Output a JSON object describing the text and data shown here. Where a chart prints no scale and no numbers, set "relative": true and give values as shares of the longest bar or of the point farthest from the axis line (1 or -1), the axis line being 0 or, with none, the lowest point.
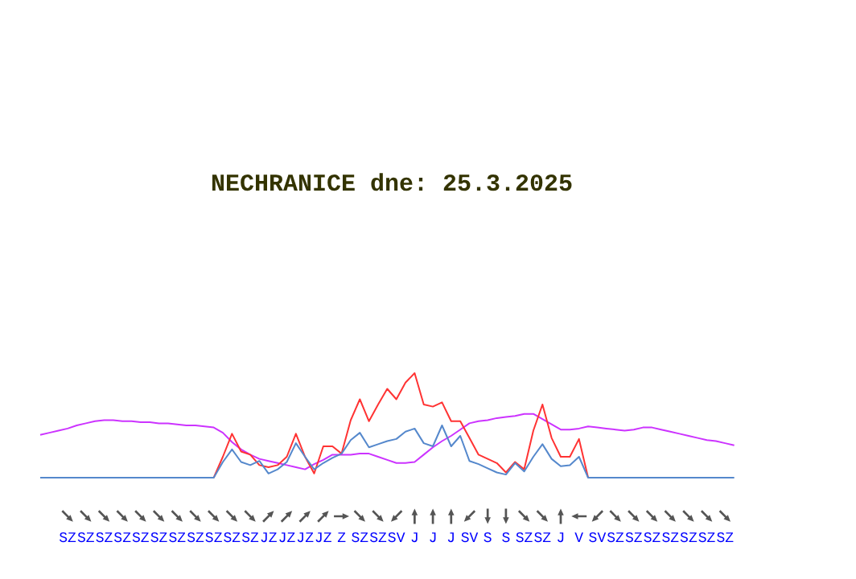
{
  "chart_data": {
    "type": "line",
    "title": "NECHRANICE dne: 25.3.2025",
    "relative": true,
    "grid": false,
    "categories": [
      null,
      null,
      null,
      "SZ",
      null,
      "SZ",
      null,
      "SZ",
      null,
      "SZ",
      null,
      "SZ",
      null,
      "SZ",
      null,
      "SZ",
      null,
      "SZ",
      null,
      "SZ",
      null,
      "SZ",
      null,
      "SZ",
      null,
      "JZ",
      null,
      "JZ",
      null,
      "JZ",
      null,
      "JZ",
      null,
      "Z",
      null,
      "SZ",
      null,
      "SZ",
      null,
      "SV",
      null,
      "J",
      null,
      "J",
      null,
      "J",
      null,
      "SV",
      null,
      "S",
      null,
      "S",
      null,
      "SZ",
      null,
      "SZ",
      null,
      "J",
      null,
      "V",
      null,
      "SV",
      null,
      "SZ",
      null,
      "SZ",
      null,
      "SZ",
      null,
      "SZ",
      null,
      "SZ",
      null,
      "SZ",
      null,
      "SZ",
      null,
      null
    ],
    "series": [
      {
        "color": "#cc33ff",
        "values": [
          0.41,
          0.43,
          0.45,
          0.47,
          0.5,
          0.52,
          0.54,
          0.55,
          0.55,
          0.54,
          0.54,
          0.53,
          0.53,
          0.52,
          0.52,
          0.51,
          0.5,
          0.5,
          0.49,
          0.48,
          0.43,
          0.34,
          0.27,
          0.22,
          0.18,
          0.16,
          0.14,
          0.12,
          0.1,
          0.08,
          0.13,
          0.17,
          0.22,
          0.22,
          0.22,
          0.23,
          0.23,
          0.2,
          0.17,
          0.14,
          0.14,
          0.15,
          0.22,
          0.29,
          0.35,
          0.4,
          0.46,
          0.52,
          0.54,
          0.55,
          0.57,
          0.58,
          0.59,
          0.61,
          0.61,
          0.56,
          0.51,
          0.46,
          0.46,
          0.47,
          0.49,
          0.48,
          0.47,
          0.46,
          0.45,
          0.46,
          0.48,
          0.48,
          0.46,
          0.44,
          0.42,
          0.4,
          0.38,
          0.36,
          0.35,
          0.33,
          0.31,
          null
        ]
      },
      {
        "color": "#ff3333",
        "values": [
          null,
          null,
          null,
          null,
          null,
          null,
          null,
          null,
          null,
          null,
          null,
          null,
          null,
          null,
          null,
          null,
          null,
          null,
          null,
          0,
          0.2,
          0.42,
          0.25,
          0.22,
          0.12,
          0.1,
          0.12,
          0.2,
          0.42,
          0.2,
          0.04,
          0.3,
          0.3,
          0.23,
          0.55,
          0.75,
          0.54,
          0.7,
          0.85,
          0.75,
          0.91,
          1.0,
          0.7,
          0.68,
          0.72,
          0.54,
          0.54,
          0.38,
          0.22,
          0.18,
          0.14,
          0.05,
          0.15,
          0.08,
          0.45,
          0.7,
          0.38,
          0.2,
          0.2,
          0.37,
          0,
          null,
          null,
          null,
          null,
          null,
          null,
          null,
          null,
          null,
          null,
          null,
          null,
          null,
          null,
          null,
          null,
          null
        ]
      },
      {
        "color": "#5588cc",
        "values": [
          0,
          0,
          0,
          0,
          0,
          0,
          0,
          0,
          0,
          0,
          0,
          0,
          0,
          0,
          0,
          0,
          0,
          0,
          0,
          0,
          0.15,
          0.27,
          0.15,
          0.12,
          0.16,
          0.04,
          0.08,
          0.15,
          0.33,
          0.2,
          0.08,
          0.14,
          0.19,
          0.23,
          0.36,
          0.43,
          0.29,
          0.32,
          0.35,
          0.37,
          0.44,
          0.47,
          0.33,
          0.3,
          0.5,
          0.3,
          0.4,
          0.16,
          0.13,
          0.09,
          0.05,
          0.03,
          0.14,
          0.06,
          0.2,
          0.32,
          0.18,
          0.11,
          0.12,
          0.2,
          0,
          0,
          0,
          0,
          0,
          0,
          0,
          0,
          0,
          0,
          0,
          0,
          0,
          0,
          0,
          0,
          0,
          null
        ]
      }
    ]
  }
}
